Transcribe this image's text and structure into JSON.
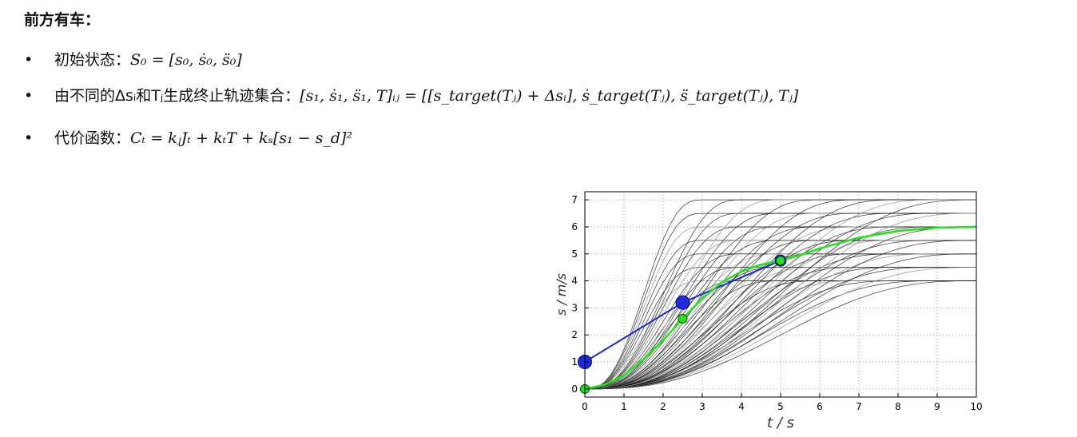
{
  "heading": "前方有车：",
  "bullets": [
    {
      "label": "初始状态：",
      "formula": "S₀ = [s₀, ṡ₀, s̈₀]"
    },
    {
      "label": "由不同的Δsᵢ和Tⱼ生成终止轨迹集合：",
      "formula": "[s₁, ṡ₁, s̈₁, T]ᵢⱼ = [[s_target(Tⱼ) + Δsᵢ], ṡ_target(Tⱼ), s̈_target(Tⱼ), Tⱼ]"
    },
    {
      "label": "代价函数：",
      "formula": "Cₜ = kⱼJₜ + kₜT + kₛ[s₁ − s_d]²"
    }
  ],
  "chart_data": {
    "type": "line",
    "xlabel": "t / s",
    "ylabel": "s / m/s",
    "xlim": [
      0,
      10
    ],
    "ylim": [
      -0.3,
      7.3
    ],
    "xticks": [
      0,
      1,
      2,
      3,
      4,
      5,
      6,
      7,
      8,
      9,
      10
    ],
    "yticks": [
      0,
      1,
      2,
      3,
      4,
      5,
      6,
      7
    ],
    "grid": true,
    "candidate_end_values": [
      4.0,
      4.5,
      5.0,
      5.5,
      6.0,
      6.5,
      7.0
    ],
    "blue_points": [
      {
        "x": 0,
        "y": 1.0
      },
      {
        "x": 2.5,
        "y": 3.2
      },
      {
        "x": 5.0,
        "y": 4.75
      }
    ],
    "green_points": [
      {
        "x": 0,
        "y": 0
      },
      {
        "x": 2.5,
        "y": 2.6
      },
      {
        "x": 5.0,
        "y": 4.75
      }
    ],
    "green_curve": {
      "x": [
        0,
        0.5,
        1,
        1.5,
        2,
        2.5,
        3,
        3.5,
        4,
        4.5,
        5,
        5.5,
        6,
        7,
        8,
        9,
        10
      ],
      "y": [
        0,
        0.15,
        0.5,
        1.1,
        1.8,
        2.6,
        3.35,
        3.95,
        4.35,
        4.6,
        4.75,
        4.95,
        5.2,
        5.6,
        5.85,
        5.97,
        6.0
      ]
    },
    "colors": {
      "blue": "#1f2bd9",
      "green": "#22e41b",
      "curves": "#111111",
      "grid": "#888888"
    }
  }
}
